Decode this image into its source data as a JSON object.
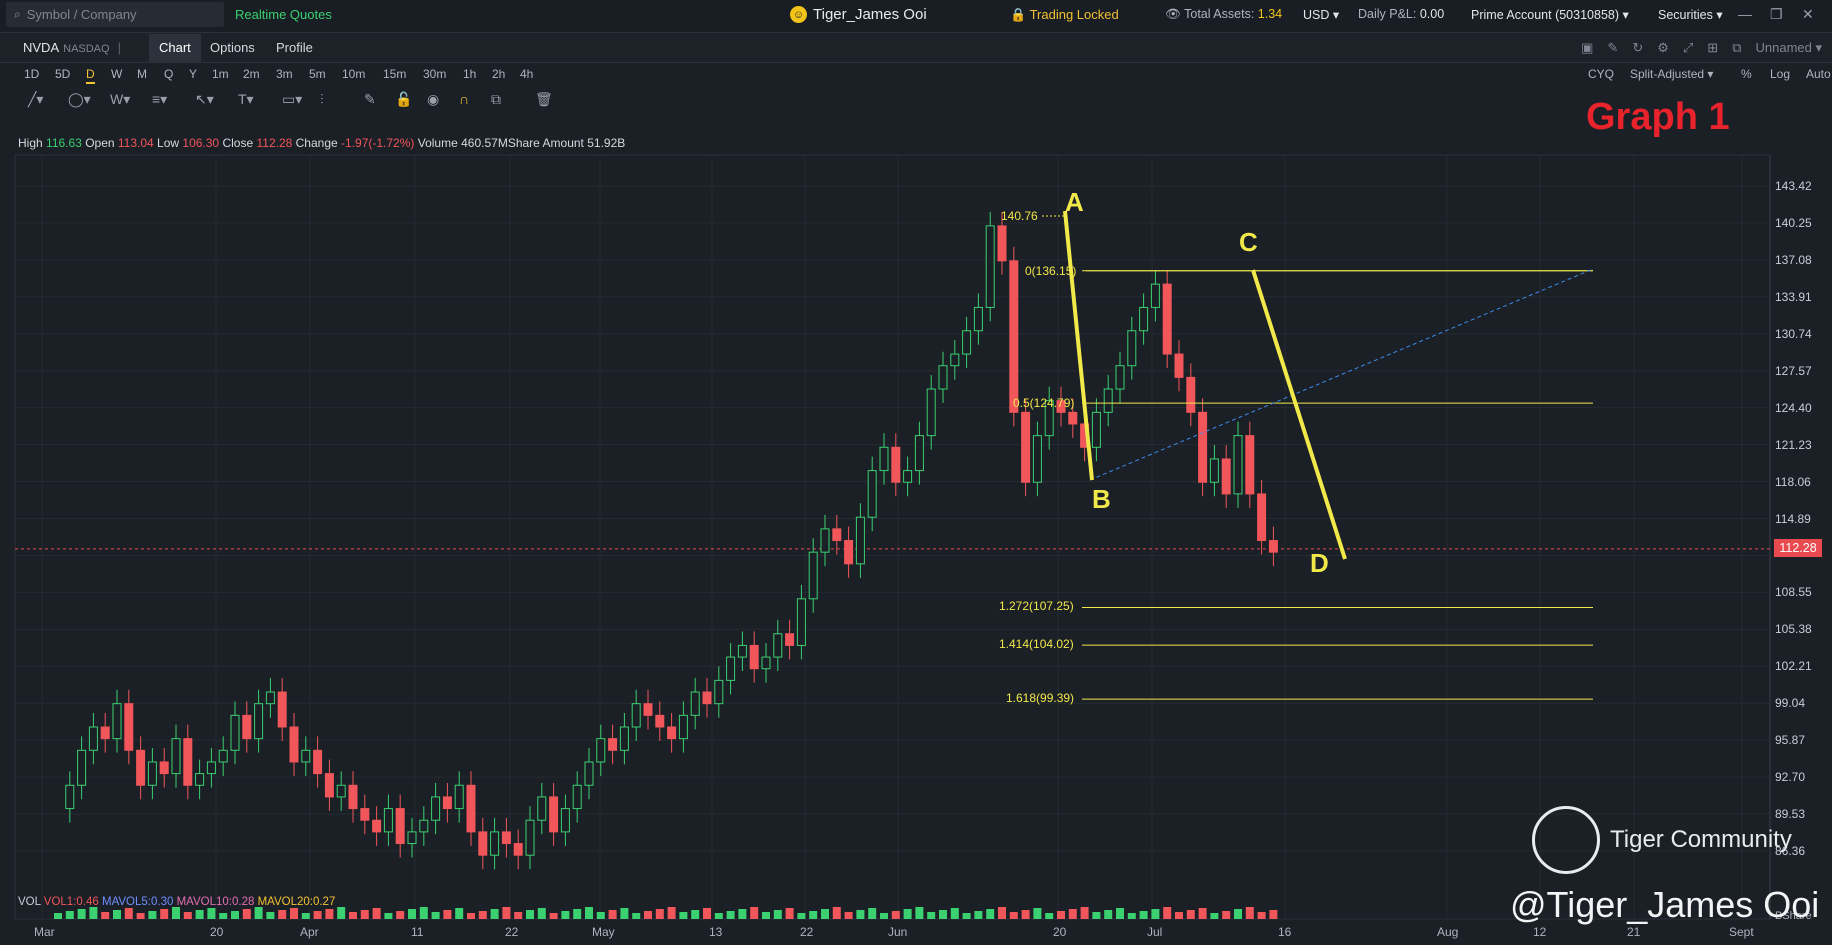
{
  "topbar": {
    "search_placeholder": "Symbol / Company",
    "realtime": "Realtime Quotes",
    "user": "Tiger_James Ooi",
    "locked": "Trading Locked",
    "assets_label": "Total Assets:",
    "assets_value": "1.34",
    "currency": "USD",
    "pnl_label": "Daily P&L:",
    "pnl_value": "0.00",
    "account": "Prime Account (50310858)",
    "securities": "Securities"
  },
  "symbol": {
    "ticker": "NVDA",
    "exchange": "NASDAQ"
  },
  "tabs": [
    "Chart",
    "Options",
    "Profile"
  ],
  "chart_toolbar_right": {
    "layout": "Unnamed"
  },
  "periods": [
    "1D",
    "5D",
    "D",
    "W",
    "M",
    "Q",
    "Y",
    "1m",
    "2m",
    "3m",
    "5m",
    "10m",
    "15m",
    "30m",
    "1h",
    "2h",
    "4h"
  ],
  "period_active": "D",
  "period_right": {
    "cyq": "CYQ",
    "adjust": "Split-Adjusted",
    "pct": "%",
    "log": "Log",
    "auto": "Auto"
  },
  "ohlc": {
    "high_label": "High",
    "high": "116.63",
    "open_label": "Open",
    "open": "113.04",
    "low_label": "Low",
    "low": "106.30",
    "close_label": "Close",
    "close": "112.28",
    "change_label": "Change",
    "change": "-1.97(-1.72%)",
    "volume_label": "Volume",
    "volume": "460.57MShare",
    "amount_label": "Amount",
    "amount": "51.92B"
  },
  "graph_label": "Graph 1",
  "price_axis": [
    "143.42",
    "140.25",
    "137.08",
    "133.91",
    "130.74",
    "127.57",
    "124.40",
    "121.23",
    "118.06",
    "114.89",
    "108.55",
    "105.38",
    "102.21",
    "99.04",
    "95.87",
    "92.70",
    "89.53",
    "86.36"
  ],
  "current_price": "112.28",
  "date_axis": [
    "Mar",
    "20",
    "Apr",
    "11",
    "22",
    "May",
    "13",
    "22",
    "Jun",
    "20",
    "Jul",
    "16",
    "Aug",
    "12",
    "21",
    "Sept"
  ],
  "volume_bar": {
    "vol": "VOL",
    "vol1": "VOL1:0.46",
    "mavol5": "MAVOL5:0.30",
    "mavol10": "MAVOL10:0.28",
    "mavol20": "MAVOL20:0.27"
  },
  "share_label": "BShare",
  "annotations": {
    "A": "A",
    "B": "B",
    "C": "C",
    "D": "D",
    "a_price": "140.76",
    "fib_0": "0(136.15)",
    "fib_05": "0.5(124.79)",
    "fib_1272": "1.272(107.25)",
    "fib_1414": "1.414(104.02)",
    "fib_1618": "1.618(99.39)"
  },
  "watermark": {
    "community": "Tiger Community",
    "handle": "@Tiger_James Ooi"
  },
  "colors": {
    "up": "#3bd070",
    "down": "#f0565a",
    "fib": "#f1e84a",
    "accent": "#f1c232"
  }
}
